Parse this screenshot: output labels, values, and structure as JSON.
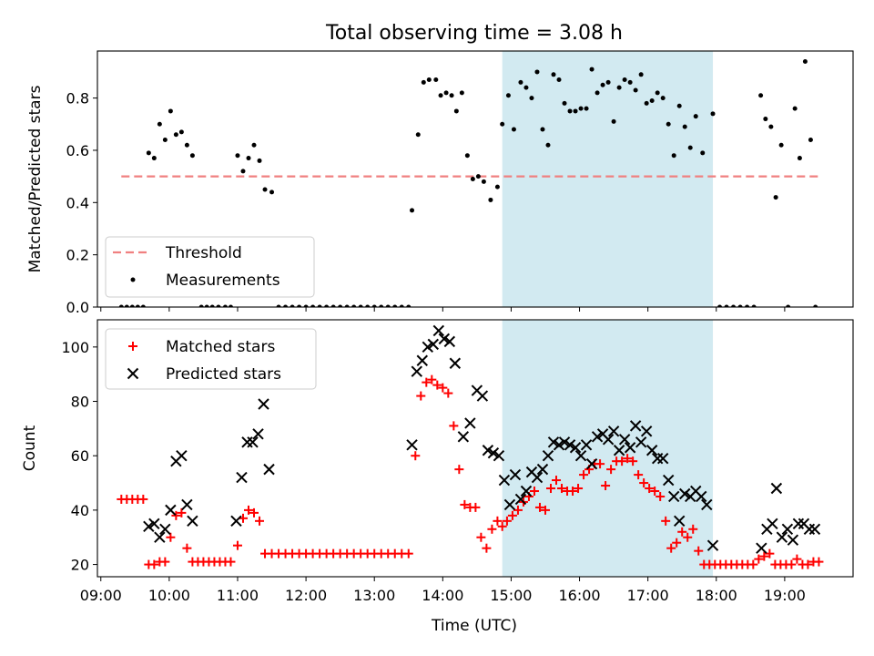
{
  "figure": {
    "title": "Total observing time = 3.08 h",
    "xlabel": "Time (UTC)",
    "highlight_color": "#add8e6"
  },
  "chart_data": [
    {
      "type": "scatter",
      "ylabel": "Matched/Predicted stars",
      "xlim": [
        8.95,
        20.0
      ],
      "ylim": [
        0.0,
        0.98
      ],
      "yticks": [
        0.0,
        0.2,
        0.4,
        0.6,
        0.8
      ],
      "ytick_labels": [
        "0.0",
        "0.2",
        "0.4",
        "0.6",
        "0.8"
      ],
      "highlight_span": [
        14.87,
        17.95
      ],
      "legend_position": "lower-left",
      "threshold": {
        "name": "Threshold",
        "y": 0.5,
        "x_range": [
          9.3,
          19.5
        ],
        "color": "#f08080"
      },
      "series": [
        {
          "name": "Measurements",
          "color": "#000000",
          "x": [
            9.3,
            9.38,
            9.46,
            9.54,
            9.62,
            9.7,
            9.78,
            9.86,
            9.94,
            10.02,
            10.1,
            10.18,
            10.26,
            10.34,
            10.47,
            10.55,
            10.63,
            10.72,
            10.82,
            10.9,
            11.0,
            11.08,
            11.16,
            11.24,
            11.32,
            11.4,
            11.5,
            11.6,
            11.7,
            11.8,
            11.9,
            12.0,
            12.1,
            12.2,
            12.3,
            12.4,
            12.5,
            12.6,
            12.7,
            12.8,
            12.9,
            13.0,
            13.1,
            13.2,
            13.3,
            13.4,
            13.5,
            13.55,
            13.64,
            13.72,
            13.8,
            13.9,
            13.97,
            14.05,
            14.13,
            14.2,
            14.28,
            14.36,
            14.44,
            14.52,
            14.6,
            14.7,
            14.8,
            14.87,
            14.96,
            15.04,
            15.14,
            15.22,
            15.3,
            15.38,
            15.46,
            15.54,
            15.62,
            15.7,
            15.78,
            15.86,
            15.94,
            16.02,
            16.1,
            16.18,
            16.26,
            16.34,
            16.42,
            16.5,
            16.58,
            16.66,
            16.74,
            16.82,
            16.9,
            16.98,
            17.06,
            17.14,
            17.22,
            17.3,
            17.38,
            17.46,
            17.54,
            17.62,
            17.7,
            17.8,
            17.95,
            18.05,
            18.15,
            18.25,
            18.35,
            18.45,
            18.55,
            18.65,
            18.72,
            18.8,
            18.87,
            18.95,
            19.05,
            19.15,
            19.22,
            19.3,
            19.38,
            19.45
          ],
          "y": [
            0.0,
            0.0,
            0.0,
            0.0,
            0.0,
            0.59,
            0.57,
            0.7,
            0.64,
            0.75,
            0.66,
            0.67,
            0.62,
            0.58,
            0.0,
            0.0,
            0.0,
            0.0,
            0.0,
            0.0,
            0.58,
            0.52,
            0.57,
            0.62,
            0.56,
            0.45,
            0.44,
            0.0,
            0.0,
            0.0,
            0.0,
            0.0,
            0.0,
            0.0,
            0.0,
            0.0,
            0.0,
            0.0,
            0.0,
            0.0,
            0.0,
            0.0,
            0.0,
            0.0,
            0.0,
            0.0,
            0.0,
            0.37,
            0.66,
            0.86,
            0.87,
            0.87,
            0.81,
            0.82,
            0.81,
            0.75,
            0.82,
            0.58,
            0.49,
            0.5,
            0.48,
            0.41,
            0.46,
            0.7,
            0.81,
            0.68,
            0.86,
            0.84,
            0.8,
            0.9,
            0.68,
            0.62,
            0.89,
            0.87,
            0.78,
            0.75,
            0.75,
            0.76,
            0.76,
            0.91,
            0.82,
            0.85,
            0.86,
            0.71,
            0.84,
            0.87,
            0.86,
            0.83,
            0.89,
            0.78,
            0.79,
            0.82,
            0.8,
            0.7,
            0.58,
            0.77,
            0.69,
            0.61,
            0.73,
            0.59,
            0.74,
            0.0,
            0.0,
            0.0,
            0.0,
            0.0,
            0.0,
            0.81,
            0.72,
            0.69,
            0.42,
            0.62,
            0.0,
            0.76,
            0.57,
            0.94,
            0.64,
            0.0
          ]
        }
      ]
    },
    {
      "type": "scatter",
      "ylabel": "Count",
      "xlabel": "Time (UTC)",
      "xlim": [
        8.95,
        20.0
      ],
      "ylim": [
        15.5,
        110.0
      ],
      "yticks": [
        20,
        40,
        60,
        80,
        100
      ],
      "ytick_labels": [
        "20",
        "40",
        "60",
        "80",
        "100"
      ],
      "xticks": [
        9,
        10,
        11,
        12,
        13,
        14,
        15,
        16,
        17,
        18,
        19
      ],
      "xtick_labels": [
        "09:00",
        "10:00",
        "11:00",
        "12:00",
        "13:00",
        "14:00",
        "15:00",
        "16:00",
        "17:00",
        "18:00",
        "19:00"
      ],
      "highlight_span": [
        14.87,
        17.95
      ],
      "legend_position": "upper-left",
      "series": [
        {
          "name": "Matched stars",
          "color": "#ff0000",
          "marker": "plus",
          "x": [
            9.3,
            9.38,
            9.46,
            9.54,
            9.62,
            9.7,
            9.78,
            9.86,
            9.94,
            10.02,
            10.1,
            10.18,
            10.26,
            10.34,
            10.42,
            10.5,
            10.58,
            10.66,
            10.74,
            10.82,
            10.9,
            11.0,
            11.08,
            11.16,
            11.24,
            11.32,
            11.4,
            11.5,
            11.6,
            11.7,
            11.8,
            11.9,
            12.0,
            12.1,
            12.2,
            12.3,
            12.4,
            12.5,
            12.6,
            12.7,
            12.8,
            12.9,
            13.0,
            13.1,
            13.2,
            13.3,
            13.4,
            13.5,
            13.6,
            13.68,
            13.76,
            13.84,
            13.92,
            14.0,
            14.08,
            14.16,
            14.24,
            14.32,
            14.4,
            14.48,
            14.56,
            14.64,
            14.72,
            14.8,
            14.87,
            14.94,
            15.02,
            15.1,
            15.18,
            15.26,
            15.34,
            15.42,
            15.5,
            15.58,
            15.66,
            15.74,
            15.82,
            15.9,
            15.98,
            16.06,
            16.14,
            16.22,
            16.3,
            16.38,
            16.46,
            16.54,
            16.62,
            16.7,
            16.78,
            16.86,
            16.94,
            17.02,
            17.1,
            17.18,
            17.26,
            17.34,
            17.42,
            17.5,
            17.58,
            17.66,
            17.74,
            17.82,
            17.9,
            17.98,
            18.06,
            18.14,
            18.22,
            18.3,
            18.38,
            18.46,
            18.54,
            18.62,
            18.7,
            18.78,
            18.86,
            18.94,
            19.02,
            19.1,
            19.18,
            19.26,
            19.34,
            19.42,
            19.5
          ],
          "y": [
            44,
            44,
            44,
            44,
            44,
            20,
            20,
            21,
            21,
            30,
            38,
            39,
            26,
            21,
            21,
            21,
            21,
            21,
            21,
            21,
            21,
            27,
            37,
            40,
            39,
            36,
            24,
            24,
            24,
            24,
            24,
            24,
            24,
            24,
            24,
            24,
            24,
            24,
            24,
            24,
            24,
            24,
            24,
            24,
            24,
            24,
            24,
            24,
            60,
            82,
            87,
            88,
            86,
            85,
            83,
            71,
            55,
            42,
            41,
            41,
            30,
            26,
            33,
            36,
            34,
            36,
            38,
            40,
            43,
            45,
            47,
            41,
            40,
            48,
            51,
            48,
            47,
            47,
            48,
            53,
            55,
            57,
            57,
            49,
            55,
            58,
            58,
            59,
            58,
            53,
            50,
            48,
            47,
            45,
            36,
            26,
            28,
            32,
            30,
            33,
            25,
            20,
            20,
            20,
            20,
            20,
            20,
            20,
            20,
            20,
            20,
            22,
            23,
            24,
            20,
            20,
            20,
            20,
            22,
            20,
            20,
            21,
            21
          ]
        },
        {
          "name": "Predicted stars",
          "color": "#000000",
          "marker": "cross",
          "x": [
            9.7,
            9.78,
            9.86,
            9.94,
            10.02,
            10.1,
            10.18,
            10.26,
            10.34,
            10.98,
            11.06,
            11.14,
            11.22,
            11.3,
            11.38,
            11.46,
            13.55,
            13.62,
            13.7,
            13.78,
            13.86,
            13.94,
            14.02,
            14.1,
            14.18,
            14.3,
            14.4,
            14.5,
            14.58,
            14.66,
            14.74,
            14.82,
            14.9,
            14.98,
            15.06,
            15.14,
            15.22,
            15.3,
            15.38,
            15.46,
            15.54,
            15.62,
            15.7,
            15.78,
            15.86,
            15.94,
            16.02,
            16.1,
            16.18,
            16.26,
            16.34,
            16.42,
            16.5,
            16.58,
            16.66,
            16.74,
            16.82,
            16.9,
            16.98,
            17.06,
            17.14,
            17.22,
            17.3,
            17.38,
            17.46,
            17.54,
            17.62,
            17.7,
            17.78,
            17.86,
            17.95,
            18.66,
            18.74,
            18.82,
            18.88,
            18.96,
            19.04,
            19.12,
            19.2,
            19.28,
            19.36,
            19.44
          ],
          "y": [
            34,
            35,
            30,
            33,
            40,
            58,
            60,
            42,
            36,
            36,
            52,
            65,
            65,
            68,
            79,
            55,
            64,
            91,
            95,
            100,
            101,
            106,
            103,
            102,
            94,
            67,
            72,
            84,
            82,
            62,
            61,
            60,
            51,
            42,
            53,
            44,
            47,
            54,
            52,
            55,
            60,
            65,
            64,
            65,
            64,
            63,
            60,
            64,
            57,
            67,
            68,
            66,
            69,
            62,
            66,
            63,
            71,
            65,
            69,
            62,
            59,
            59,
            51,
            45,
            36,
            46,
            45,
            47,
            45,
            42,
            27,
            26,
            33,
            35,
            48,
            30,
            33,
            29,
            35,
            35,
            33,
            33
          ]
        }
      ]
    }
  ]
}
